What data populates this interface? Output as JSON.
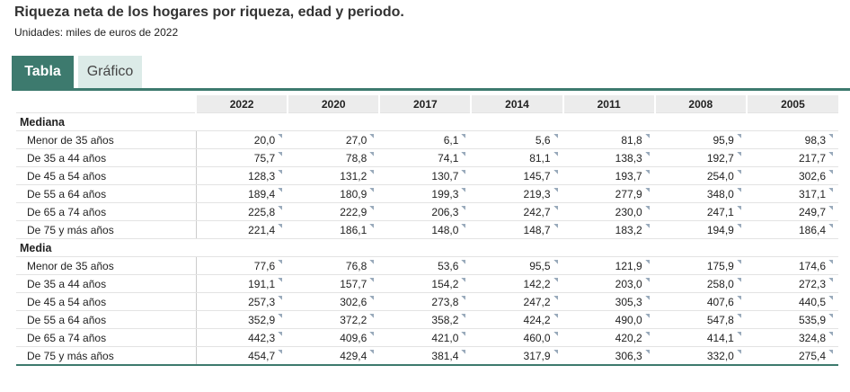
{
  "header": {
    "title": "Riqueza neta de los hogares por riqueza, edad y periodo.",
    "subtitle": "Unidades: miles de euros de 2022"
  },
  "tabs": [
    "Tabla",
    "Gráfico"
  ],
  "table": {
    "columns": [
      "2022",
      "2020",
      "2017",
      "2014",
      "2011",
      "2008",
      "2005"
    ],
    "groups": [
      {
        "name": "Mediana",
        "rows": [
          {
            "label": "Menor de 35 años",
            "values": [
              "20,0",
              "27,0",
              "6,1",
              "5,6",
              "81,8",
              "95,9",
              "98,3"
            ]
          },
          {
            "label": "De 35 a 44 años",
            "values": [
              "75,7",
              "78,8",
              "74,1",
              "81,1",
              "138,3",
              "192,7",
              "217,7"
            ]
          },
          {
            "label": "De 45 a 54 años",
            "values": [
              "128,3",
              "131,2",
              "130,7",
              "145,7",
              "193,7",
              "254,0",
              "302,6"
            ]
          },
          {
            "label": "De 55 a 64 años",
            "values": [
              "189,4",
              "180,9",
              "199,3",
              "219,3",
              "277,9",
              "348,0",
              "317,1"
            ]
          },
          {
            "label": "De 65 a 74 años",
            "values": [
              "225,8",
              "222,9",
              "206,3",
              "242,7",
              "230,0",
              "247,1",
              "249,7"
            ]
          },
          {
            "label": "De 75 y más años",
            "values": [
              "221,4",
              "186,1",
              "148,0",
              "148,7",
              "183,2",
              "194,9",
              "186,4"
            ]
          }
        ]
      },
      {
        "name": "Media",
        "rows": [
          {
            "label": "Menor de 35 años",
            "values": [
              "77,6",
              "76,8",
              "53,6",
              "95,5",
              "121,9",
              "175,9",
              "174,6"
            ]
          },
          {
            "label": "De 35 a 44 años",
            "values": [
              "191,1",
              "157,7",
              "154,2",
              "142,2",
              "203,0",
              "258,0",
              "272,3"
            ]
          },
          {
            "label": "De 45 a 54 años",
            "values": [
              "257,3",
              "302,6",
              "273,8",
              "247,2",
              "305,3",
              "407,6",
              "440,5"
            ]
          },
          {
            "label": "De 55 a 64 años",
            "values": [
              "352,9",
              "372,2",
              "358,2",
              "424,2",
              "490,0",
              "547,8",
              "535,9"
            ]
          },
          {
            "label": "De 65 a 74 años",
            "values": [
              "442,3",
              "409,6",
              "421,0",
              "460,0",
              "420,2",
              "414,1",
              "324,8"
            ]
          },
          {
            "label": "De 75 y más años",
            "values": [
              "454,7",
              "429,4",
              "381,4",
              "317,9",
              "306,3",
              "332,0",
              "275,4"
            ]
          }
        ]
      }
    ]
  }
}
